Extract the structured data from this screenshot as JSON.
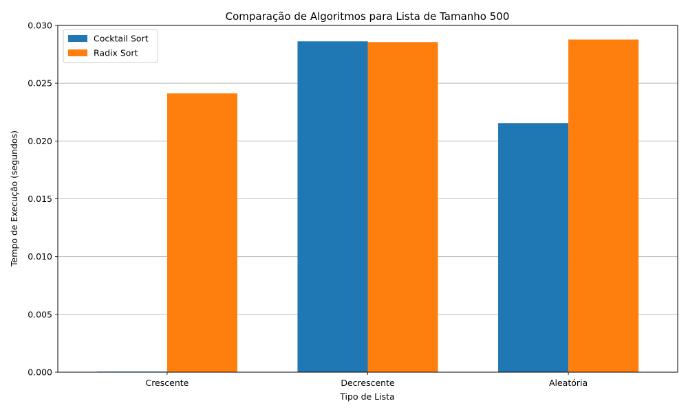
{
  "chart_data": {
    "type": "bar",
    "title": "Comparação de Algoritmos para Lista de Tamanho 500",
    "xlabel": "Tipo de Lista",
    "ylabel": "Tempo de Execução (segundos)",
    "categories": [
      "Crescente",
      "Decrescente",
      "Aleatória"
    ],
    "series": [
      {
        "name": "Cocktail Sort",
        "color": "#1f77b4",
        "values": [
          5e-05,
          0.02862,
          0.02155
        ]
      },
      {
        "name": "Radix Sort",
        "color": "#ff7f0e",
        "values": [
          0.02412,
          0.02856,
          0.02878
        ]
      }
    ],
    "ylim": [
      0,
      0.03
    ],
    "yticks": [
      "0.000",
      "0.005",
      "0.010",
      "0.015",
      "0.020",
      "0.025",
      "0.030"
    ],
    "grid": "y-axis",
    "legend": "upper-left"
  }
}
